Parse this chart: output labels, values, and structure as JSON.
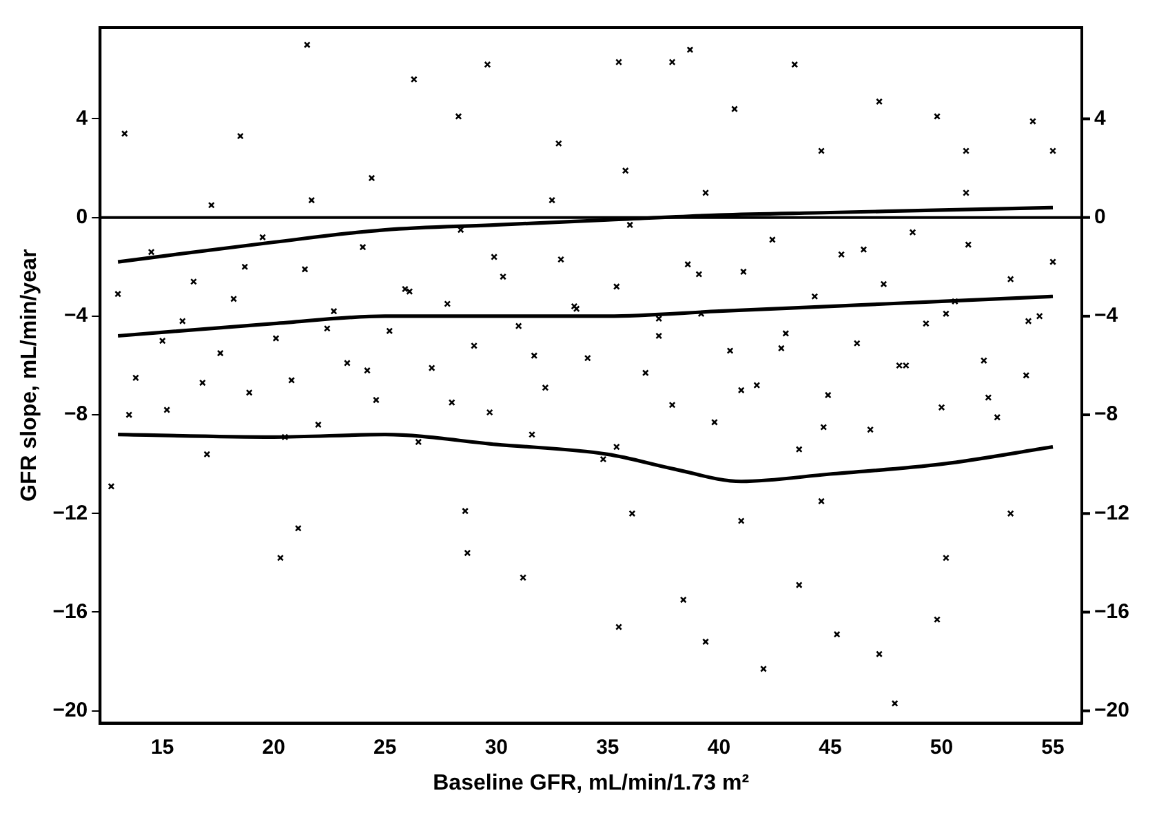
{
  "chart_data": {
    "type": "scatter",
    "xlabel": "Baseline GFR, mL/min/1.73 m²",
    "ylabel": "GFR slope, mL/min/year",
    "xlim": [
      12.2,
      56.3
    ],
    "xticks": [
      15,
      20,
      25,
      30,
      35,
      40,
      45,
      50,
      55
    ],
    "ylim": [
      -20.5,
      7.7
    ],
    "yticks": [
      -20,
      -16,
      -12,
      -8,
      -4,
      0,
      4
    ],
    "y2lim": [
      -20.5,
      7.7
    ],
    "y2ticks": [
      -20,
      -16,
      -12,
      -8,
      -4,
      0,
      4
    ],
    "grid": false,
    "legend": false,
    "ref_lines": [
      {
        "axis": "y",
        "value": 0,
        "color": "#000000"
      }
    ],
    "series": [
      {
        "marker": "cross",
        "color": "#000000",
        "x": [
          13.3,
          21.5,
          26.3,
          29.6,
          35.5,
          37.9,
          38.7,
          43.4,
          28.3,
          18.5,
          24.4,
          32.8,
          35.8,
          40.7,
          44.6,
          47.2,
          49.8,
          51.1,
          54.1,
          55,
          32.5,
          21.7,
          17.2,
          39.4,
          51.1,
          12.7,
          20.3,
          21.1,
          28.7,
          28.6,
          31.2,
          35.5,
          38.4,
          39.4,
          41,
          43.6,
          47.2,
          49.8,
          50.2,
          47.9,
          42,
          45.3,
          36.1,
          44.6,
          53.1,
          13,
          13.8,
          14.5,
          15.2,
          15.9,
          16.4,
          17,
          17.6,
          18.2,
          18.9,
          19.5,
          20.1,
          20.8,
          21.4,
          22,
          22.7,
          23.3,
          24,
          24.6,
          25.2,
          25.9,
          26.5,
          27.1,
          27.8,
          28.4,
          29,
          29.7,
          30.3,
          31,
          31.6,
          32.2,
          32.9,
          33.5,
          34.1,
          34.8,
          35.4,
          36,
          36.7,
          37.3,
          37.9,
          38.6,
          39.2,
          39.8,
          40.5,
          41.1,
          41.7,
          42.4,
          43,
          43.6,
          44.3,
          44.9,
          45.5,
          46.2,
          46.8,
          47.4,
          48.1,
          48.7,
          49.3,
          50,
          50.6,
          51.2,
          51.9,
          52.5,
          53.1,
          53.8,
          54.4,
          55,
          13.5,
          15,
          16.8,
          18.7,
          20.5,
          22.4,
          24.2,
          26.1,
          28,
          29.9,
          31.7,
          33.6,
          35.4,
          37.3,
          39.1,
          41,
          42.8,
          44.7,
          46.5,
          48.4,
          50.2,
          52.1,
          53.9
        ],
        "values": [
          3.4,
          7.0,
          5.6,
          6.2,
          6.3,
          6.3,
          6.8,
          6.2,
          4.1,
          3.3,
          1.6,
          3.0,
          1.9,
          4.4,
          2.7,
          4.7,
          4.1,
          2.7,
          3.9,
          2.7,
          0.7,
          0.7,
          0.5,
          1.0,
          1.0,
          -10.9,
          -13.8,
          -12.6,
          -13.6,
          -11.9,
          -14.6,
          -16.6,
          -15.5,
          -17.2,
          -12.3,
          -14.9,
          -17.7,
          -16.3,
          -13.8,
          -19.7,
          -18.3,
          -16.9,
          -12.0,
          -11.5,
          -12.0,
          -3.1,
          -6.5,
          -1.4,
          -7.8,
          -4.2,
          -2.6,
          -9.6,
          -5.5,
          -3.3,
          -7.1,
          -0.8,
          -4.9,
          -6.6,
          -2.1,
          -8.4,
          -3.8,
          -5.9,
          -1.2,
          -7.4,
          -4.6,
          -2.9,
          -9.1,
          -6.1,
          -3.5,
          -0.5,
          -5.2,
          -7.9,
          -2.4,
          -4.4,
          -8.8,
          -6.9,
          -1.7,
          -3.6,
          -5.7,
          -9.8,
          -2.8,
          -0.3,
          -6.3,
          -4.1,
          -7.6,
          -1.9,
          -3.9,
          -8.3,
          -5.4,
          -2.2,
          -6.8,
          -0.9,
          -4.7,
          -9.4,
          -3.2,
          -7.2,
          -1.5,
          -5.1,
          -8.6,
          -2.7,
          -6.0,
          -0.6,
          -4.3,
          -7.7,
          -3.4,
          -1.1,
          -5.8,
          -8.1,
          -2.5,
          -6.4,
          -4.0,
          -1.8,
          -8.0,
          -5.0,
          -6.7,
          -2.0,
          -8.9,
          -4.5,
          -6.2,
          -3.0,
          -7.5,
          -1.6,
          -5.6,
          -3.7,
          -9.3,
          -4.8,
          -2.3,
          -7.0,
          -5.3,
          -8.5,
          -1.3,
          -6.0,
          -3.9,
          -7.3,
          -4.2
        ]
      },
      {
        "type": "line",
        "color": "#000000",
        "x": [
          13,
          20,
          25,
          30,
          35,
          40,
          45,
          50,
          55
        ],
        "values": [
          -1.8,
          -1.0,
          -0.5,
          -0.3,
          -0.1,
          0.1,
          0.2,
          0.3,
          0.4
        ]
      },
      {
        "type": "line",
        "color": "#000000",
        "x": [
          13,
          20,
          25,
          30,
          35,
          40,
          45,
          50,
          55
        ],
        "values": [
          -4.8,
          -4.3,
          -4.0,
          -4.0,
          -4.0,
          -3.8,
          -3.6,
          -3.4,
          -3.2
        ]
      },
      {
        "type": "line",
        "color": "#000000",
        "x": [
          13,
          20,
          25,
          30,
          35,
          38,
          41,
          45,
          50,
          55
        ],
        "values": [
          -8.8,
          -8.9,
          -8.8,
          -9.2,
          -9.6,
          -10.2,
          -10.7,
          -10.4,
          -10.0,
          -9.3
        ]
      }
    ]
  }
}
